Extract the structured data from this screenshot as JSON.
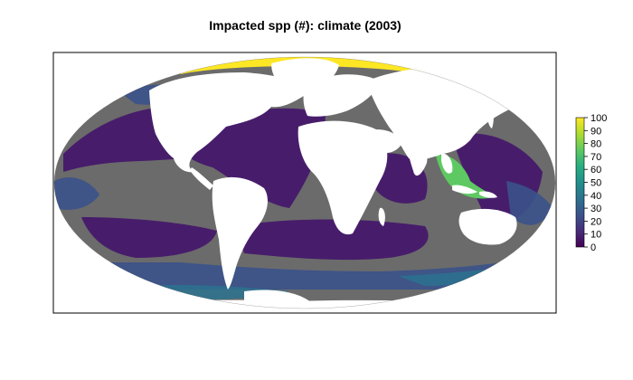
{
  "title": "Impacted spp (#): climate (2003)",
  "colors": {
    "ocean_base": "#6b6b6b",
    "land": "#ffffff",
    "frame": "#000000",
    "scale": [
      "#440154",
      "#472d7b",
      "#3b528b",
      "#2c728e",
      "#21918c",
      "#28ae80",
      "#5ec962",
      "#addc30",
      "#fde725"
    ]
  },
  "legend": {
    "ticks": [
      "0",
      "10",
      "20",
      "30",
      "40",
      "50",
      "60",
      "70",
      "80",
      "90",
      "100"
    ],
    "min": 0,
    "max": 100
  }
}
